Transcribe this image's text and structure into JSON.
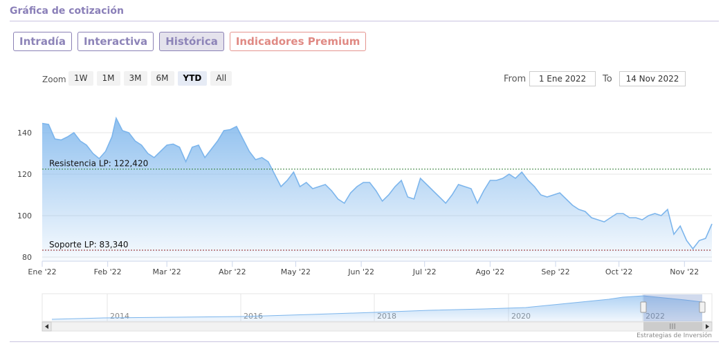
{
  "header": {
    "title": "Gráfica de cotización"
  },
  "tabs": [
    {
      "label": "Intradía",
      "active": false
    },
    {
      "label": "Interactiva",
      "active": false
    },
    {
      "label": "Histórica",
      "active": true
    },
    {
      "label": "Indicadores Premium",
      "active": false
    }
  ],
  "range_selector": {
    "zoom_label": "Zoom",
    "buttons": [
      {
        "label": "1W"
      },
      {
        "label": "1M"
      },
      {
        "label": "3M"
      },
      {
        "label": "6M"
      },
      {
        "label": "YTD",
        "active": true
      },
      {
        "label": "All"
      }
    ],
    "from_label": "From",
    "from_value": "1 Ene 2022",
    "to_label": "To",
    "to_value": "14 Nov 2022"
  },
  "colors": {
    "line": "#7cb5ec",
    "fill_top": "#7cb5ec",
    "resistance": "#2e7d32",
    "support": "#8b1a1a",
    "tab_border": "#8a80b5",
    "premium": "#e08a84"
  },
  "chart_data": {
    "type": "area",
    "title": "",
    "xlabel": "",
    "ylabel": "",
    "ylim": [
      80,
      150
    ],
    "yticks": [
      80,
      100,
      120,
      140
    ],
    "xlim": [
      "2022-01-01",
      "2022-11-14"
    ],
    "xticks": [
      {
        "date": "2022-01-01",
        "label": "Ene '22"
      },
      {
        "date": "2022-02-01",
        "label": "Feb '22"
      },
      {
        "date": "2022-03-01",
        "label": "Mar '22"
      },
      {
        "date": "2022-04-01",
        "label": "Abr '22"
      },
      {
        "date": "2022-05-01",
        "label": "May '22"
      },
      {
        "date": "2022-06-01",
        "label": "Jun '22"
      },
      {
        "date": "2022-07-01",
        "label": "Jul '22"
      },
      {
        "date": "2022-08-01",
        "label": "Ago '22"
      },
      {
        "date": "2022-09-01",
        "label": "Sep '22"
      },
      {
        "date": "2022-10-01",
        "label": "Oct '22"
      },
      {
        "date": "2022-11-01",
        "label": "Nov '22"
      }
    ],
    "grid": true,
    "series": [
      {
        "x": [
          "2022-01-01",
          "2022-01-04",
          "2022-01-07",
          "2022-01-10",
          "2022-01-13",
          "2022-01-16",
          "2022-01-19",
          "2022-01-22",
          "2022-01-25",
          "2022-01-28",
          "2022-01-31",
          "2022-02-03",
          "2022-02-05",
          "2022-02-08",
          "2022-02-11",
          "2022-02-14",
          "2022-02-17",
          "2022-02-20",
          "2022-02-23",
          "2022-02-26",
          "2022-03-01",
          "2022-03-04",
          "2022-03-07",
          "2022-03-10",
          "2022-03-13",
          "2022-03-16",
          "2022-03-19",
          "2022-03-22",
          "2022-03-25",
          "2022-03-28",
          "2022-03-31",
          "2022-04-03",
          "2022-04-06",
          "2022-04-09",
          "2022-04-12",
          "2022-04-15",
          "2022-04-18",
          "2022-04-21",
          "2022-04-24",
          "2022-04-27",
          "2022-04-30",
          "2022-05-03",
          "2022-05-06",
          "2022-05-09",
          "2022-05-12",
          "2022-05-15",
          "2022-05-18",
          "2022-05-21",
          "2022-05-24",
          "2022-05-27",
          "2022-05-30",
          "2022-06-02",
          "2022-06-05",
          "2022-06-08",
          "2022-06-11",
          "2022-06-14",
          "2022-06-17",
          "2022-06-20",
          "2022-06-23",
          "2022-06-26",
          "2022-06-29",
          "2022-07-02",
          "2022-07-05",
          "2022-07-08",
          "2022-07-11",
          "2022-07-14",
          "2022-07-17",
          "2022-07-20",
          "2022-07-23",
          "2022-07-26",
          "2022-07-29",
          "2022-08-01",
          "2022-08-04",
          "2022-08-07",
          "2022-08-10",
          "2022-08-13",
          "2022-08-16",
          "2022-08-19",
          "2022-08-22",
          "2022-08-25",
          "2022-08-28",
          "2022-08-31",
          "2022-09-03",
          "2022-09-06",
          "2022-09-09",
          "2022-09-12",
          "2022-09-15",
          "2022-09-18",
          "2022-09-21",
          "2022-09-24",
          "2022-09-27",
          "2022-09-30",
          "2022-10-03",
          "2022-10-06",
          "2022-10-09",
          "2022-10-12",
          "2022-10-15",
          "2022-10-18",
          "2022-10-21",
          "2022-10-24",
          "2022-10-27",
          "2022-10-30",
          "2022-11-02",
          "2022-11-05",
          "2022-11-08",
          "2022-11-11",
          "2022-11-14"
        ],
        "y": [
          144.5,
          144,
          137,
          136.5,
          138,
          140,
          136,
          134,
          130,
          127.5,
          131,
          138,
          147,
          141,
          140,
          136,
          134,
          130,
          128,
          131,
          134,
          134.5,
          133,
          126,
          133,
          134,
          128,
          132,
          136,
          141,
          141.5,
          143,
          137,
          131,
          127,
          128,
          126,
          120,
          114,
          117,
          121,
          114,
          116,
          113,
          114,
          115,
          112,
          108,
          106,
          111,
          114,
          116,
          116,
          112,
          107,
          110,
          114,
          117,
          109,
          108,
          118,
          115,
          112,
          109,
          106,
          110,
          115,
          114,
          113,
          106,
          112,
          117,
          117,
          118,
          120,
          118,
          121,
          117,
          114,
          110,
          109,
          110,
          111,
          108,
          105,
          103,
          102,
          99,
          98,
          97,
          99,
          101,
          101,
          99,
          99,
          98,
          100,
          101,
          100,
          103,
          91,
          95,
          88,
          84,
          88,
          89,
          96
        ]
      }
    ],
    "annotations": [
      {
        "text": "Resistencia LP: 122,420",
        "y": 122.42
      },
      {
        "text": "Soporte LP: 83,340",
        "y": 83.34
      }
    ],
    "navigator": {
      "labels": [
        "2014",
        "2016",
        "2018",
        "2020",
        "2022"
      ]
    }
  },
  "credit": "Estrategias de Inversión"
}
